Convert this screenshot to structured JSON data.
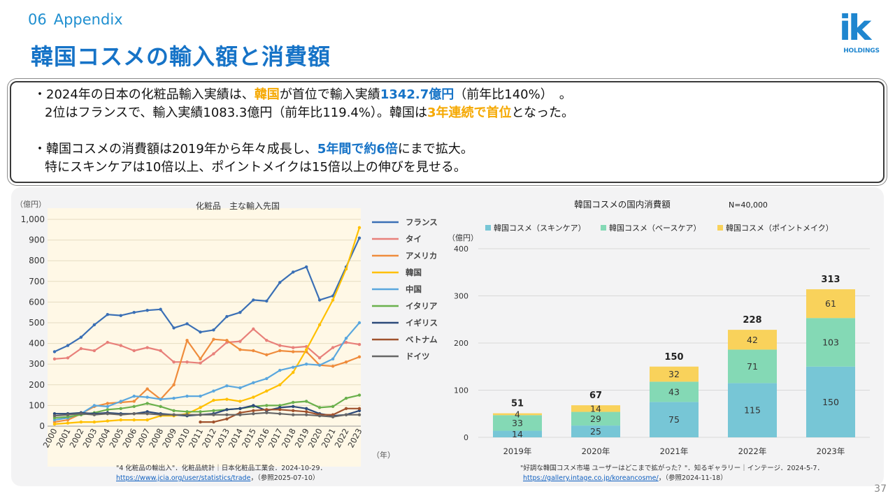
{
  "header": {
    "section_num": "06",
    "section_label": "Appendix",
    "title": "韓国コスメの輸入額と消費額",
    "logo_text": "ik",
    "logo_sub": "HOLDINGS"
  },
  "summary": {
    "l1": [
      "・2024年の日本の化粧品輸入実績は、",
      "韓国",
      "が首位で輸入実績",
      "1342.7億円",
      "（前年比140%）　。"
    ],
    "l2": [
      "2位はフランスで、輸入実績1083.3億円（前年比119.4%）。韓国は",
      "3年連続で首位",
      "となった。"
    ],
    "l3": [
      "・韓国コスメの消費額は2019年から年々成長し、",
      "5年間で約6倍",
      "にまで拡大。"
    ],
    "l4": "特にスキンケアは10倍以上、ポイントメイクは15倍以上の伸びを見せる。"
  },
  "page_number": "37",
  "colors": {
    "accent_blue": "#1673c7",
    "accent_orange": "#f5a800",
    "france": "#3a6fb5",
    "thailand": "#e8807a",
    "america": "#ef8c3c",
    "korea": "#ffc000",
    "china": "#5aa7de",
    "italy": "#6ab04c",
    "uk": "#2c4a7a",
    "vietnam": "#a0522d",
    "germany": "#666666",
    "skincare": "#77c6d6",
    "basecare": "#84d9b5",
    "pointmake": "#f9d25b"
  },
  "chart_data": [
    {
      "type": "line",
      "title": "化粧品　主な輸入先国",
      "ylabel": "（億円）",
      "xlabel": "（年）",
      "ylim": [
        0,
        1000
      ],
      "yticks": [
        "0",
        "100",
        "200",
        "300",
        "400",
        "500",
        "600",
        "700",
        "800",
        "900",
        "1,000"
      ],
      "legend_position": "right",
      "x": [
        "2000",
        "2001",
        "2002",
        "2003",
        "2004",
        "2005",
        "2006",
        "2007",
        "2008",
        "2009",
        "2010",
        "2011",
        "2012",
        "2013",
        "2014",
        "2015",
        "2016",
        "2017",
        "2018",
        "2019",
        "2020",
        "2021",
        "2022",
        "2023"
      ],
      "series": [
        {
          "name": "フランス",
          "color": "#3a6fb5",
          "values": [
            360,
            390,
            430,
            490,
            540,
            535,
            550,
            560,
            565,
            475,
            495,
            455,
            465,
            530,
            550,
            610,
            605,
            695,
            745,
            770,
            610,
            630,
            770,
            910
          ]
        },
        {
          "name": "タイ",
          "color": "#e8807a",
          "values": [
            325,
            330,
            375,
            365,
            405,
            390,
            365,
            380,
            365,
            310,
            310,
            305,
            350,
            405,
            410,
            470,
            415,
            390,
            380,
            385,
            330,
            380,
            405,
            395
          ]
        },
        {
          "name": "アメリカ",
          "color": "#ef8c3c",
          "values": [
            20,
            30,
            60,
            95,
            110,
            115,
            120,
            180,
            130,
            200,
            415,
            325,
            420,
            415,
            370,
            365,
            345,
            365,
            360,
            360,
            295,
            290,
            310,
            335
          ]
        },
        {
          "name": "韓国",
          "color": "#ffc000",
          "values": [
            10,
            15,
            20,
            20,
            25,
            30,
            30,
            30,
            50,
            50,
            60,
            90,
            125,
            130,
            120,
            140,
            170,
            200,
            260,
            370,
            490,
            610,
            760,
            960
          ]
        },
        {
          "name": "中国",
          "color": "#5aa7de",
          "values": [
            30,
            40,
            60,
            100,
            95,
            120,
            145,
            140,
            130,
            135,
            145,
            145,
            170,
            195,
            185,
            210,
            230,
            270,
            285,
            300,
            295,
            325,
            425,
            500
          ]
        },
        {
          "name": "イタリア",
          "color": "#6ab04c",
          "values": [
            40,
            45,
            55,
            65,
            80,
            85,
            95,
            110,
            95,
            75,
            70,
            70,
            75,
            80,
            85,
            95,
            100,
            100,
            115,
            120,
            90,
            95,
            135,
            150
          ]
        },
        {
          "name": "イギリス",
          "color": "#2c4a7a",
          "values": [
            60,
            60,
            65,
            60,
            65,
            60,
            60,
            70,
            60,
            55,
            50,
            55,
            60,
            80,
            85,
            100,
            75,
            90,
            95,
            85,
            60,
            50,
            55,
            75
          ]
        },
        {
          "name": "ベトナム",
          "color": "#a0522d",
          "values": [
            null,
            null,
            null,
            null,
            null,
            null,
            null,
            null,
            null,
            null,
            null,
            20,
            20,
            35,
            65,
            75,
            80,
            80,
            75,
            70,
            55,
            55,
            85,
            85
          ]
        },
        {
          "name": "ドイツ",
          "color": "#666666",
          "values": [
            50,
            55,
            60,
            55,
            60,
            55,
            60,
            60,
            55,
            55,
            55,
            55,
            55,
            55,
            55,
            60,
            65,
            60,
            55,
            55,
            50,
            45,
            55,
            55
          ]
        }
      ]
    },
    {
      "type": "bar",
      "stacked": true,
      "title": "韓国コスメの国内消費額",
      "subtitle": "N=40,000",
      "ylabel": "（億円）",
      "ylim": [
        0,
        400
      ],
      "yticks": [
        "0",
        "100",
        "200",
        "300",
        "400"
      ],
      "legend_position": "top",
      "categories": [
        "2019年",
        "2020年",
        "2021年",
        "2022年",
        "2023年"
      ],
      "series": [
        {
          "name": "韓国コスメ（スキンケア）",
          "color": "#77c6d6",
          "values": [
            14,
            25,
            75,
            115,
            150
          ]
        },
        {
          "name": "韓国コスメ（ベースケア）",
          "color": "#84d9b5",
          "values": [
            33,
            29,
            43,
            71,
            103
          ]
        },
        {
          "name": "韓国コスメ（ポイントメイク）",
          "color": "#f9d25b",
          "values": [
            4,
            14,
            32,
            42,
            61
          ]
        }
      ],
      "totals": [
        51,
        67,
        150,
        228,
        313
      ]
    }
  ],
  "citations": {
    "left_1": "\"4 化粧品の輸出入\"．化粧品統計｜日本化粧品工業会．2024-10-29．",
    "left_url": "https://www.jcia.org/user/statistics/trade",
    "left_2": "，（参照2025-07-10）",
    "right_1": "\"好調な韓国コスメ市場 ユーザーはどこまで拡がった？\"．知るギャラリー｜インテージ．2024-5-7．",
    "right_url": "https://gallery.intage.co.jp/koreancosme/",
    "right_2": "，（参照2024-11-18）"
  }
}
